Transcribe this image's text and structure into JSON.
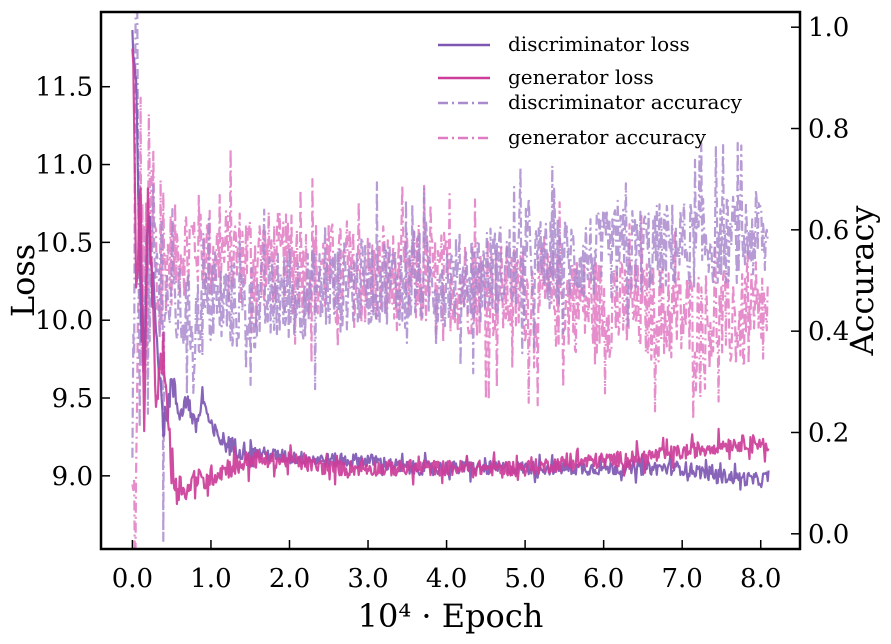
{
  "chart_data": {
    "type": "line",
    "xlabel": "10⁴ · Epoch",
    "ylabel_left": "Loss",
    "ylabel_right": "Accuracy",
    "x_ticks": [
      0.0,
      1.0,
      2.0,
      3.0,
      4.0,
      5.0,
      6.0,
      7.0,
      8.0
    ],
    "x_tick_labels": [
      "0.0",
      "1.0",
      "2.0",
      "3.0",
      "4.0",
      "5.0",
      "6.0",
      "7.0",
      "8.0"
    ],
    "y_left_ticks": [
      9.0,
      9.5,
      10.0,
      10.5,
      11.0,
      11.5
    ],
    "y_left_tick_labels": [
      "9.0",
      "9.5",
      "10.0",
      "10.5",
      "11.0",
      "11.5"
    ],
    "y_right_ticks": [
      0.0,
      0.2,
      0.4,
      0.6,
      0.8,
      1.0
    ],
    "y_right_tick_labels": [
      "0.0",
      "0.2",
      "0.4",
      "0.6",
      "0.8",
      "1.0"
    ],
    "xlim": [
      -0.4,
      8.5
    ],
    "ylim_left": [
      8.53,
      11.98
    ],
    "ylim_right": [
      -0.03,
      1.03
    ],
    "legend_position": "top-right",
    "series": [
      {
        "name": "discriminator loss",
        "axis": "left",
        "style": "solid",
        "color": "#7e57b2",
        "x": [
          0.0,
          0.05,
          0.1,
          0.15,
          0.2,
          0.3,
          0.4,
          0.5,
          0.6,
          0.7,
          0.8,
          0.9,
          1.0,
          1.2,
          1.5,
          2.0,
          2.5,
          3.0,
          3.5,
          4.0,
          4.5,
          5.0,
          5.5,
          6.0,
          6.5,
          7.0,
          7.5,
          8.0,
          8.1
        ],
        "y": [
          11.85,
          11.5,
          10.2,
          9.8,
          10.6,
          10.0,
          9.3,
          9.6,
          9.4,
          9.5,
          9.3,
          9.5,
          9.3,
          9.2,
          9.15,
          9.12,
          9.1,
          9.1,
          9.05,
          9.05,
          9.05,
          9.05,
          9.05,
          9.05,
          9.05,
          9.05,
          9.0,
          8.97,
          9.0
        ]
      },
      {
        "name": "generator loss",
        "axis": "left",
        "style": "solid",
        "color": "#cc3d99",
        "x": [
          0.0,
          0.05,
          0.1,
          0.15,
          0.2,
          0.3,
          0.4,
          0.5,
          0.6,
          0.7,
          0.8,
          0.9,
          1.0,
          1.2,
          1.5,
          2.0,
          2.5,
          3.0,
          3.5,
          4.0,
          4.5,
          5.0,
          5.5,
          6.0,
          6.5,
          7.0,
          7.5,
          8.0,
          8.1
        ],
        "y": [
          11.8,
          10.2,
          10.8,
          9.3,
          10.9,
          9.5,
          9.8,
          9.0,
          8.95,
          8.9,
          9.0,
          8.95,
          9.0,
          9.05,
          9.1,
          9.1,
          9.05,
          9.05,
          9.05,
          9.05,
          9.05,
          9.05,
          9.08,
          9.1,
          9.12,
          9.15,
          9.2,
          9.22,
          9.15
        ]
      },
      {
        "name": "discriminator accuracy",
        "axis": "right",
        "style": "dashdot",
        "color": "#a98acc",
        "x": [
          0.0,
          0.05,
          0.1,
          0.15,
          0.2,
          0.3,
          0.5,
          0.8,
          1.0,
          1.5,
          2.0,
          2.5,
          3.0,
          3.5,
          4.0,
          4.5,
          5.0,
          5.5,
          6.0,
          6.5,
          7.0,
          7.5,
          8.0,
          8.1
        ],
        "y": [
          0.02,
          1.0,
          0.3,
          0.6,
          0.4,
          0.5,
          0.45,
          0.42,
          0.45,
          0.45,
          0.47,
          0.48,
          0.5,
          0.5,
          0.5,
          0.52,
          0.53,
          0.54,
          0.55,
          0.56,
          0.57,
          0.58,
          0.59,
          0.56
        ]
      },
      {
        "name": "generator accuracy",
        "axis": "right",
        "style": "dashdot",
        "color": "#e07ac2",
        "x": [
          0.0,
          0.05,
          0.1,
          0.15,
          0.2,
          0.3,
          0.5,
          0.8,
          1.0,
          1.5,
          2.0,
          2.5,
          3.0,
          3.5,
          4.0,
          4.5,
          5.0,
          5.5,
          6.0,
          6.5,
          7.0,
          7.5,
          8.0,
          8.1
        ],
        "y": [
          0.02,
          0.02,
          0.7,
          0.4,
          0.6,
          0.5,
          0.55,
          0.58,
          0.55,
          0.55,
          0.53,
          0.52,
          0.5,
          0.5,
          0.5,
          0.48,
          0.47,
          0.46,
          0.45,
          0.44,
          0.43,
          0.42,
          0.41,
          0.44
        ]
      }
    ]
  }
}
